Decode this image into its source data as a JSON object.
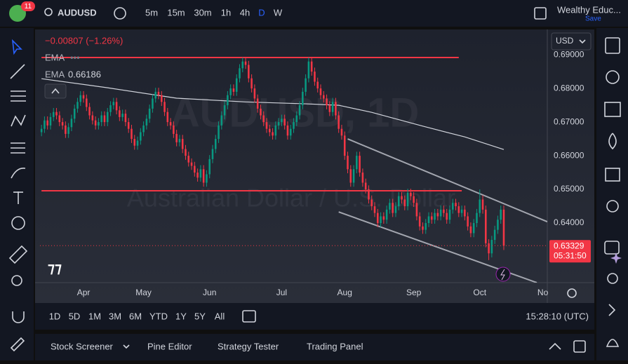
{
  "toolbar": {
    "badge": "11",
    "symbol": "AUDUSD",
    "intervals": [
      "5m",
      "15m",
      "30m",
      "1h",
      "4h",
      "D",
      "W"
    ],
    "account": "Wealthy Educ...",
    "save": "Save"
  },
  "chart_data": {
    "type": "candlestick",
    "title": "AUDUSD, 1D",
    "subtitle": "Australian Dollar / U.S. Dollar",
    "change": "−0.00807 (−1.26%)",
    "currency": "USD",
    "countdown": "05:31:50",
    "up_color": "#089981",
    "down_color": "#f23645",
    "open": [
      0.667,
      0.668,
      0.6705,
      0.669,
      0.6715,
      0.673,
      0.672,
      0.67,
      0.669,
      0.6665,
      0.6685,
      0.671,
      0.674,
      0.676,
      0.678,
      0.677,
      0.6745,
      0.672,
      0.6705,
      0.669,
      0.67,
      0.672,
      0.67,
      0.673,
      0.675,
      0.676,
      0.6735,
      0.6715,
      0.6725,
      0.67,
      0.668,
      0.665,
      0.663,
      0.6645,
      0.667,
      0.669,
      0.671,
      0.674,
      0.677,
      0.679,
      0.678,
      0.676,
      0.673,
      0.67,
      0.669,
      0.6665,
      0.664,
      0.665,
      0.662,
      0.66,
      0.658,
      0.657,
      0.655,
      0.6535,
      0.656,
      0.652,
      0.6545,
      0.659,
      0.662,
      0.665,
      0.669,
      0.672,
      0.675,
      0.678,
      0.68,
      0.679,
      0.683,
      0.686,
      0.688,
      0.687,
      0.683,
      0.68,
      0.677,
      0.674,
      0.672,
      0.67,
      0.668,
      0.667,
      0.666,
      0.669,
      0.67,
      0.671,
      0.669,
      0.666,
      0.668,
      0.67,
      0.672,
      0.675,
      0.679,
      0.683,
      0.688,
      0.685,
      0.682,
      0.68,
      0.678,
      0.677,
      0.675,
      0.673,
      0.676,
      0.672,
      0.668,
      0.666,
      0.66,
      0.656,
      0.652,
      0.656,
      0.66,
      0.655,
      0.652,
      0.65,
      0.647,
      0.645,
      0.643,
      0.64,
      0.642,
      0.641,
      0.644,
      0.646,
      0.643,
      0.645,
      0.648,
      0.647,
      0.645,
      0.649,
      0.648,
      0.646,
      0.642,
      0.639,
      0.638,
      0.64,
      0.642,
      0.641,
      0.643,
      0.642,
      0.644,
      0.643,
      0.641,
      0.644,
      0.646,
      0.645,
      0.643,
      0.644,
      0.642,
      0.639,
      0.637,
      0.64,
      0.643,
      0.647,
      0.644,
      0.634,
      0.631,
      0.635,
      0.638,
      0.641,
      0.644
    ],
    "high": [
      0.6692,
      0.6717,
      0.6717,
      0.6727,
      0.6742,
      0.6742,
      0.6732,
      0.6712,
      0.6702,
      0.6697,
      0.6722,
      0.6752,
      0.6772,
      0.6792,
      0.6792,
      0.6782,
      0.6757,
      0.6732,
      0.6717,
      0.6712,
      0.6732,
      0.6732,
      0.6742,
      0.6762,
      0.6772,
      0.6772,
      0.6747,
      0.6737,
      0.6737,
      0.6712,
      0.6692,
      0.6662,
      0.6657,
      0.6682,
      0.6702,
      0.6722,
      0.6752,
      0.6782,
      0.6802,
      0.6802,
      0.6792,
      0.6772,
      0.6742,
      0.6712,
      0.6702,
      0.6677,
      0.6662,
      0.6662,
      0.6632,
      0.6612,
      0.6592,
      0.6582,
      0.6562,
      0.6572,
      0.6572,
      0.6557,
      0.6602,
      0.6632,
      0.6662,
      0.6702,
      0.6732,
      0.6762,
      0.6792,
      0.6812,
      0.6812,
      0.6842,
      0.6872,
      0.6892,
      0.6892,
      0.6882,
      0.6842,
      0.6812,
      0.6782,
      0.6752,
      0.6732,
      0.6712,
      0.6692,
      0.6682,
      0.6702,
      0.6712,
      0.6722,
      0.6722,
      0.6702,
      0.6692,
      0.6712,
      0.6732,
      0.6762,
      0.6802,
      0.6842,
      0.6892,
      0.6892,
      0.6862,
      0.6832,
      0.6812,
      0.6792,
      0.6782,
      0.6762,
      0.6772,
      0.6772,
      0.6732,
      0.6692,
      0.6672,
      0.6612,
      0.6572,
      0.6572,
      0.6612,
      0.6612,
      0.6562,
      0.6532,
      0.6512,
      0.6482,
      0.6462,
      0.6442,
      0.6432,
      0.6432,
      0.6452,
      0.6472,
      0.6472,
      0.6462,
      0.6492,
      0.6492,
      0.6482,
      0.6502,
      0.6502,
      0.6492,
      0.6472,
      0.6432,
      0.6402,
      0.6412,
      0.6432,
      0.6432,
      0.6442,
      0.6442,
      0.6452,
      0.6452,
      0.6442,
      0.6452,
      0.6472,
      0.6472,
      0.6462,
      0.6452,
      0.6452,
      0.6432,
      0.6402,
      0.6412,
      0.6442,
      0.65,
      0.6482,
      0.6452,
      0.6352,
      0.6362,
      0.6392,
      0.6422,
      0.6452,
      0.6452
    ],
    "low": [
      0.6658,
      0.6668,
      0.6678,
      0.6678,
      0.6703,
      0.6708,
      0.6688,
      0.6678,
      0.6653,
      0.6653,
      0.6673,
      0.6698,
      0.6728,
      0.6748,
      0.6758,
      0.6733,
      0.6708,
      0.6693,
      0.6678,
      0.6678,
      0.6688,
      0.6688,
      0.6688,
      0.6718,
      0.6738,
      0.6723,
      0.6703,
      0.6703,
      0.6688,
      0.6668,
      0.6638,
      0.6618,
      0.6618,
      0.6633,
      0.6658,
      0.6678,
      0.6698,
      0.6728,
      0.6758,
      0.6768,
      0.6748,
      0.6718,
      0.6688,
      0.6678,
      0.6653,
      0.6628,
      0.6628,
      0.6608,
      0.6588,
      0.6568,
      0.6558,
      0.6538,
      0.6523,
      0.6523,
      0.6508,
      0.6508,
      0.6533,
      0.6578,
      0.6608,
      0.6638,
      0.6678,
      0.6708,
      0.6738,
      0.6768,
      0.6778,
      0.6778,
      0.6818,
      0.6848,
      0.6858,
      0.6818,
      0.6788,
      0.6758,
      0.6728,
      0.6708,
      0.6688,
      0.6668,
      0.6658,
      0.6648,
      0.6648,
      0.6678,
      0.6688,
      0.6678,
      0.6648,
      0.6648,
      0.6668,
      0.6688,
      0.6708,
      0.6738,
      0.6778,
      0.6818,
      0.6838,
      0.6808,
      0.6788,
      0.6768,
      0.6758,
      0.6738,
      0.6718,
      0.6718,
      0.6708,
      0.6668,
      0.6648,
      0.6588,
      0.6548,
      0.6508,
      0.6508,
      0.6548,
      0.6538,
      0.6508,
      0.6488,
      0.6458,
      0.6438,
      0.6418,
      0.6388,
      0.6388,
      0.6398,
      0.6398,
      0.6428,
      0.6418,
      0.6418,
      0.6438,
      0.6458,
      0.6438,
      0.6438,
      0.6468,
      0.6448,
      0.6408,
      0.6378,
      0.6368,
      0.6368,
      0.6388,
      0.6398,
      0.6398,
      0.6408,
      0.6408,
      0.6418,
      0.6398,
      0.6398,
      0.6428,
      0.6438,
      0.6418,
      0.6418,
      0.6408,
      0.6378,
      0.6358,
      0.6358,
      0.6388,
      0.6418,
      0.6428,
      0.6328,
      0.629,
      0.6298,
      0.6338,
      0.6368,
      0.6398,
      0.632
    ],
    "close": [
      0.668,
      0.6705,
      0.669,
      0.6715,
      0.673,
      0.672,
      0.67,
      0.669,
      0.6665,
      0.6685,
      0.671,
      0.674,
      0.676,
      0.678,
      0.677,
      0.6745,
      0.672,
      0.6705,
      0.669,
      0.67,
      0.672,
      0.67,
      0.673,
      0.675,
      0.676,
      0.6735,
      0.6715,
      0.6725,
      0.67,
      0.668,
      0.665,
      0.663,
      0.6645,
      0.667,
      0.669,
      0.671,
      0.674,
      0.677,
      0.679,
      0.678,
      0.676,
      0.673,
      0.67,
      0.669,
      0.6665,
      0.664,
      0.665,
      0.662,
      0.66,
      0.658,
      0.657,
      0.655,
      0.6535,
      0.656,
      0.652,
      0.6545,
      0.659,
      0.662,
      0.665,
      0.669,
      0.672,
      0.675,
      0.678,
      0.68,
      0.679,
      0.683,
      0.686,
      0.688,
      0.687,
      0.683,
      0.68,
      0.677,
      0.674,
      0.672,
      0.67,
      0.668,
      0.667,
      0.666,
      0.669,
      0.67,
      0.671,
      0.669,
      0.666,
      0.668,
      0.67,
      0.672,
      0.675,
      0.679,
      0.683,
      0.688,
      0.685,
      0.682,
      0.68,
      0.678,
      0.677,
      0.675,
      0.673,
      0.676,
      0.672,
      0.668,
      0.666,
      0.66,
      0.656,
      0.652,
      0.656,
      0.66,
      0.655,
      0.652,
      0.65,
      0.647,
      0.645,
      0.643,
      0.64,
      0.642,
      0.641,
      0.644,
      0.646,
      0.643,
      0.645,
      0.648,
      0.647,
      0.645,
      0.649,
      0.648,
      0.646,
      0.642,
      0.639,
      0.638,
      0.64,
      0.642,
      0.641,
      0.643,
      0.642,
      0.644,
      0.643,
      0.641,
      0.644,
      0.646,
      0.645,
      0.643,
      0.644,
      0.642,
      0.639,
      0.637,
      0.64,
      0.643,
      0.647,
      0.644,
      0.634,
      0.631,
      0.635,
      0.638,
      0.641,
      0.644,
      0.63329
    ],
    "xlim": [
      -0.5,
      168.5
    ],
    "xticks": [
      {
        "value": 14,
        "label": "Apr"
      },
      {
        "value": 34,
        "label": "May"
      },
      {
        "value": 56,
        "label": "Jun"
      },
      {
        "value": 80,
        "label": "Jul"
      },
      {
        "value": 101,
        "label": "Aug"
      },
      {
        "value": 124,
        "label": "Sep"
      },
      {
        "value": 146,
        "label": "Oct"
      },
      {
        "value": 167,
        "label": "No"
      }
    ],
    "ylim": [
      0.6223,
      0.6969
    ],
    "yticks": [
      {
        "value": 0.69,
        "label": "0.69000"
      },
      {
        "value": 0.68,
        "label": "0.68000"
      },
      {
        "value": 0.67,
        "label": "0.67000"
      },
      {
        "value": 0.66,
        "label": "0.66000"
      },
      {
        "value": 0.65,
        "label": "0.65000"
      },
      {
        "value": 0.64,
        "label": "0.64000"
      }
    ],
    "grid": false,
    "indicators": [
      {
        "name": "EMA"
      },
      {
        "name": "EMA",
        "color": "#d1d4dc",
        "x": [
          0,
          22,
          45,
          68,
          89,
          99,
          110,
          127,
          141,
          154
        ],
        "values": [
          0.6829,
          0.6802,
          0.6771,
          0.676,
          0.6754,
          0.675,
          0.6729,
          0.6688,
          0.6656,
          0.66186
        ]
      }
    ],
    "drawings": [
      {
        "color": "#f23645",
        "x": [
          0,
          139
        ],
        "y": [
          0.6892,
          0.6892
        ]
      },
      {
        "color": "#f23645",
        "x": [
          0,
          140
        ],
        "y": [
          0.6496,
          0.6496
        ]
      },
      {
        "color": "#a3a6af",
        "x": [
          102,
          168.5
        ],
        "y": [
          0.665,
          0.6404
        ]
      },
      {
        "color": "#a3a6af",
        "x": [
          99,
          165
        ],
        "y": [
          0.6433,
          0.6223
        ]
      }
    ]
  },
  "range_bar": {
    "ranges": [
      "1D",
      "5D",
      "1M",
      "3M",
      "6M",
      "YTD",
      "1Y",
      "5Y",
      "All"
    ],
    "clock": "15:28:10 (UTC)"
  },
  "bottom_panel": {
    "tabs": [
      "Stock Screener",
      "Pine Editor",
      "Strategy Tester",
      "Trading Panel"
    ]
  }
}
